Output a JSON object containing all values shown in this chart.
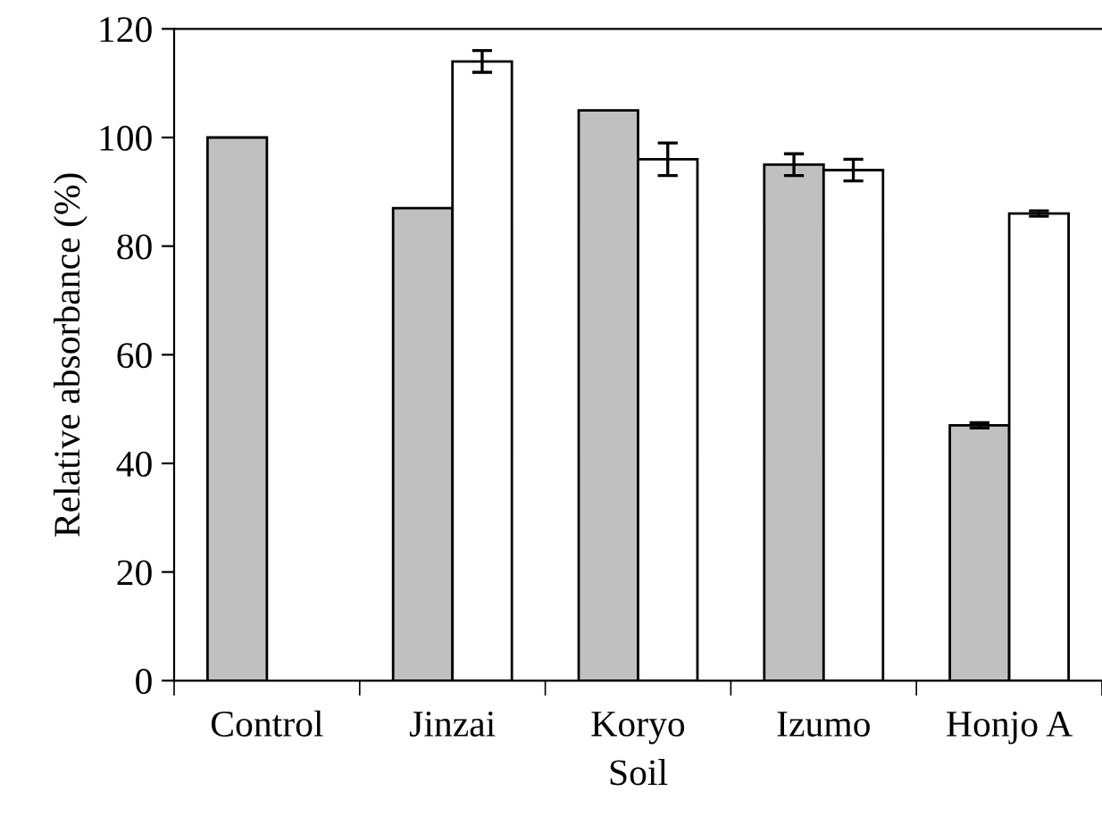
{
  "chart_data": {
    "type": "bar",
    "xlabel": "Soil",
    "ylabel": "Relative absorbance (%)",
    "categories": [
      "Control",
      "Jinzai",
      "Koryo",
      "Izumo",
      "Honjo A"
    ],
    "series": [
      {
        "color": "#c0c0c0",
        "values": [
          100,
          87,
          105,
          95,
          47
        ],
        "errors": [
          null,
          null,
          null,
          2,
          0.5
        ]
      },
      {
        "color": "#ffffff",
        "values": [
          null,
          114,
          96,
          94,
          86
        ],
        "errors": [
          null,
          2,
          3,
          2,
          0.5
        ]
      }
    ],
    "ylim": [
      0,
      120
    ],
    "yticks": [
      0,
      20,
      40,
      60,
      80,
      100,
      120
    ],
    "grid": false,
    "legend": false
  }
}
